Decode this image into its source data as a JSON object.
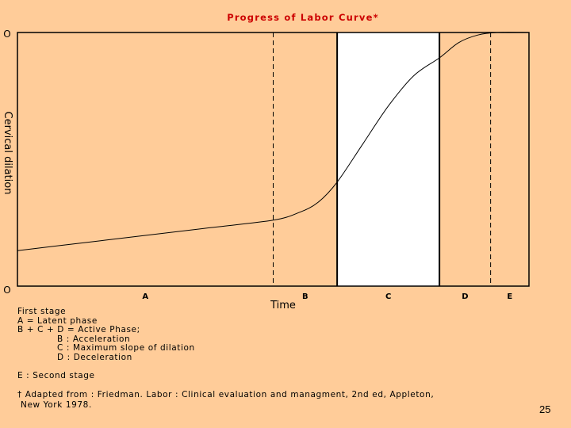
{
  "chart_data": {
    "type": "line",
    "title": "Progress of Labor Curve*",
    "xlabel": "Time",
    "ylabel": "Cervical dilation",
    "y_tick_labels": [
      "O",
      "O"
    ],
    "phases": [
      {
        "label": "A",
        "start": 0,
        "end": 2.0
      },
      {
        "label": "B",
        "start": 2.0,
        "end": 2.5
      },
      {
        "label": "C",
        "start": 2.5,
        "end": 3.3
      },
      {
        "label": "D",
        "start": 3.3,
        "end": 3.7
      },
      {
        "label": "E",
        "start": 3.7,
        "end": 4.0
      }
    ],
    "highlighted_phase": "C",
    "series": [
      {
        "x": [
          0,
          0.5,
          1.0,
          1.5,
          2.0,
          2.2,
          2.35,
          2.5,
          2.7,
          2.9,
          3.1,
          3.3,
          3.45,
          3.6,
          3.75,
          4.0
        ],
        "y": [
          0.14,
          0.17,
          0.2,
          0.23,
          0.26,
          0.29,
          0.33,
          0.41,
          0.56,
          0.71,
          0.83,
          0.9,
          0.96,
          0.99,
          1.0,
          1.0
        ]
      }
    ],
    "xlim": [
      0,
      4
    ],
    "ylim": [
      0,
      1
    ],
    "colors": {
      "background": "#ffcc99",
      "highlight": "#ffffff",
      "line": "#000000",
      "title": "#cc0000"
    }
  },
  "notes": {
    "first_stage": "First stage",
    "latent": "A = Latent phase",
    "active": "B + C + D = Active Phase;",
    "b": "B : Acceleration",
    "c": "C : Maximum slope of dilation",
    "d": "D : Deceleration",
    "second_stage": "E : Second stage"
  },
  "footnote": {
    "line1": "† Adapted from : Friedman. Labor : Clinical evaluation and managment, 2nd ed, Appleton,",
    "line2": "New York 1978."
  },
  "slide_number": "25"
}
